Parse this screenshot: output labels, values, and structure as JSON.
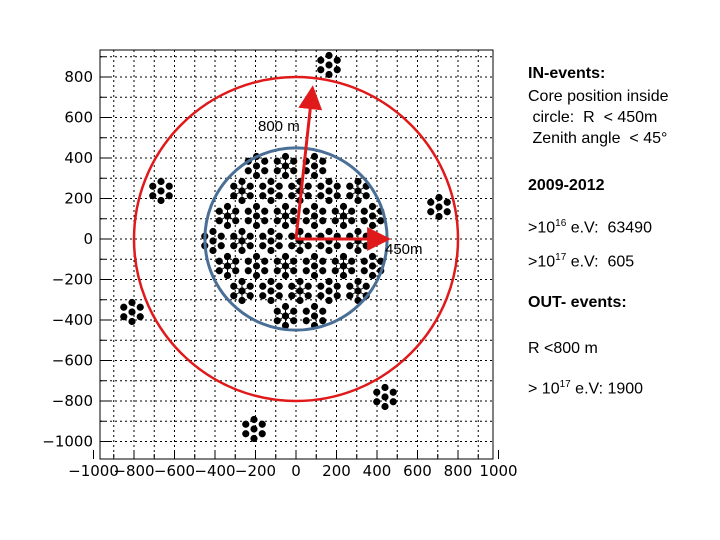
{
  "chart_data": {
    "type": "scatter",
    "title": "",
    "xlabel": "",
    "ylabel": "",
    "xlim": [
      -1000,
      1000
    ],
    "ylim": [
      -1100,
      900
    ],
    "grid": true,
    "x_ticks": [
      "−1000",
      "−800",
      "−600",
      "−400",
      "−200",
      "0",
      "200",
      "400",
      "600",
      "800",
      "1000"
    ],
    "y_ticks": [
      "800",
      "600",
      "400",
      "200",
      "0",
      "−200",
      "−400",
      "−600",
      "−800",
      "−1000"
    ],
    "inner_circle": {
      "r": 450,
      "color": "#4a6f96"
    },
    "outer_circle": {
      "r": 800,
      "color": "#e0191a"
    },
    "arrows": [
      {
        "label": "800 m",
        "to": [
          80,
          730
        ]
      },
      {
        "label": "450m",
        "to": [
          440,
          0
        ]
      }
    ],
    "colors": {
      "detector": "#000000",
      "arrow": "#e0191a"
    }
  },
  "info": {
    "in_title": "IN-events:",
    "in_line1": "Core position inside",
    "in_line2": " circle:  R  < 450m",
    "in_line3": " Zenith angle  < 45°",
    "period": "2009-2012",
    "e16_prefix": ">10",
    "e16_exp": "16",
    "e16_suffix": " e.V:  63490",
    "e17_prefix": ">10",
    "e17_exp": "17",
    "e17_suffix": " e.V:  605",
    "out_title": "OUT- events:",
    "out_line1": "R <800 m",
    "out_e17_prefix": "> 10",
    "out_e17_exp": "17",
    "out_e17_suffix": " e.V: 1900"
  }
}
